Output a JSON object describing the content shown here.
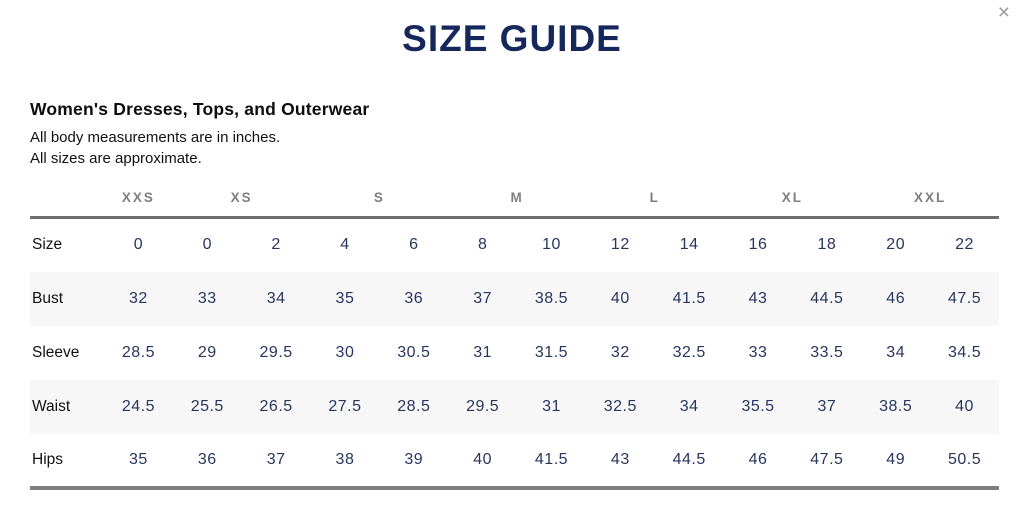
{
  "modal": {
    "title": "SIZE GUIDE",
    "close_glyph": "×"
  },
  "section": {
    "heading": "Women's Dresses, Tops, and Outerwear",
    "notes": [
      "All body measurements are in inches.",
      "All sizes are approximate."
    ]
  },
  "table": {
    "size_groups": [
      {
        "label": "XXS",
        "colspan": 1
      },
      {
        "label": "XS",
        "colspan": 2
      },
      {
        "label": "S",
        "colspan": 2
      },
      {
        "label": "M",
        "colspan": 2
      },
      {
        "label": "L",
        "colspan": 2
      },
      {
        "label": "XL",
        "colspan": 2
      },
      {
        "label": "XXL",
        "colspan": 2
      }
    ],
    "rows": [
      {
        "label": "Size",
        "values": [
          "0",
          "0",
          "2",
          "4",
          "6",
          "8",
          "10",
          "12",
          "14",
          "16",
          "18",
          "20",
          "22"
        ]
      },
      {
        "label": "Bust",
        "values": [
          "32",
          "33",
          "34",
          "35",
          "36",
          "37",
          "38.5",
          "40",
          "41.5",
          "43",
          "44.5",
          "46",
          "47.5"
        ]
      },
      {
        "label": "Sleeve",
        "values": [
          "28.5",
          "29",
          "29.5",
          "30",
          "30.5",
          "31",
          "31.5",
          "32",
          "32.5",
          "33",
          "33.5",
          "34",
          "34.5"
        ]
      },
      {
        "label": "Waist",
        "values": [
          "24.5",
          "25.5",
          "26.5",
          "27.5",
          "28.5",
          "29.5",
          "31",
          "32.5",
          "34",
          "35.5",
          "37",
          "38.5",
          "40"
        ]
      },
      {
        "label": "Hips",
        "values": [
          "35",
          "36",
          "37",
          "38",
          "39",
          "40",
          "41.5",
          "43",
          "44.5",
          "46",
          "47.5",
          "49",
          "50.5"
        ]
      }
    ]
  },
  "colors": {
    "title_navy": "#16275c",
    "value_navy": "#28355f",
    "group_header_gray": "#7f7f7f",
    "thick_border_gray": "#6e6e6e",
    "bottom_border_gray": "#7d7d7d",
    "stripe_background": "#f7f7f7",
    "close_icon_gray": "#9c9c9c",
    "text_black": "#111111"
  }
}
